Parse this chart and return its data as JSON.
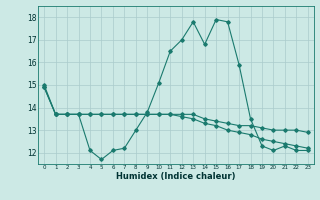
{
  "title": "",
  "xlabel": "Humidex (Indice chaleur)",
  "ylabel": "",
  "background_color": "#cce9e5",
  "grid_color": "#aacccc",
  "line_color": "#1a7a6e",
  "xlim": [
    -0.5,
    23.5
  ],
  "ylim": [
    11.5,
    18.5
  ],
  "xticks": [
    0,
    1,
    2,
    3,
    4,
    5,
    6,
    7,
    8,
    9,
    10,
    11,
    12,
    13,
    14,
    15,
    16,
    17,
    18,
    19,
    20,
    21,
    22,
    23
  ],
  "yticks": [
    12,
    13,
    14,
    15,
    16,
    17,
    18
  ],
  "line1": [
    15.0,
    13.7,
    13.7,
    13.7,
    12.1,
    11.7,
    12.1,
    12.2,
    13.0,
    13.8,
    15.1,
    16.5,
    17.0,
    17.8,
    16.8,
    17.9,
    17.8,
    15.9,
    13.5,
    12.3,
    12.1,
    12.3,
    12.1,
    12.1
  ],
  "line2": [
    14.9,
    13.7,
    13.7,
    13.7,
    13.7,
    13.7,
    13.7,
    13.7,
    13.7,
    13.7,
    13.7,
    13.7,
    13.7,
    13.7,
    13.5,
    13.4,
    13.3,
    13.2,
    13.2,
    13.1,
    13.0,
    13.0,
    13.0,
    12.9
  ],
  "line3": [
    14.9,
    13.7,
    13.7,
    13.7,
    13.7,
    13.7,
    13.7,
    13.7,
    13.7,
    13.7,
    13.7,
    13.7,
    13.6,
    13.5,
    13.3,
    13.2,
    13.0,
    12.9,
    12.8,
    12.6,
    12.5,
    12.4,
    12.3,
    12.2
  ]
}
